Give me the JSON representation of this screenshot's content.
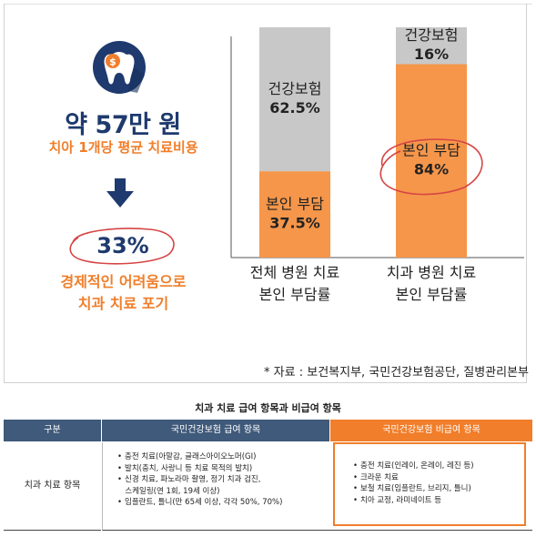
{
  "infographic": {
    "headline": "약 57만 원",
    "subline": "치아 1개당 평균 치료비용",
    "percent": "33%",
    "giveup_line1": "경제적인 어려움으로",
    "giveup_line2": "치과 치료 포기",
    "colors": {
      "navy": "#1e3a6e",
      "orange": "#f07e2a",
      "gray": "#c8c8c8",
      "circle": "#d64545"
    }
  },
  "chart_data": {
    "type": "bar",
    "stacked": true,
    "categories": [
      "전체 병원 치료\n본인 부담률",
      "치과 병원 치료\n본인 부담률"
    ],
    "series": [
      {
        "name": "본인 부담",
        "values": [
          37.5,
          84
        ],
        "color": "#f5964a"
      },
      {
        "name": "건강보험",
        "values": [
          62.5,
          16
        ],
        "color": "#c8c8c8"
      }
    ],
    "value_labels": [
      {
        "category": 0,
        "series": 1,
        "label": "건강보험",
        "value": "62.5%"
      },
      {
        "category": 0,
        "series": 0,
        "label": "본인 부담",
        "value": "37.5%"
      },
      {
        "category": 1,
        "series": 1,
        "label": "건강보험",
        "value": "16%"
      },
      {
        "category": 1,
        "series": 0,
        "label": "본인 부담",
        "value": "84%"
      }
    ],
    "category_lines": [
      [
        "전체 병원 치료",
        "본인 부담률"
      ],
      [
        "치과 병원 치료",
        "본인 부담률"
      ]
    ],
    "ylim": [
      0,
      100
    ],
    "grid": false,
    "legend": "none"
  },
  "source": "* 자료 : 보건복지부, 국민건강보험공단, 질병관리본부",
  "table": {
    "title": "치과 치료 급여 항목과 비급여 항목",
    "headers": [
      "구분",
      "국민건강보험 급여 항목",
      "국민건강보험 비급여 항목"
    ],
    "row_label": "치과 치료 항목",
    "covered": [
      "충전 치료(아말감, 글래스아이오노머(GI)",
      "발치(충치, 사랑니 등 치료 목적의 발치)",
      "신경 치료, 파노라마 촬영, 정기 치과 검진,",
      "스케일링(연 1회, 19세 이상)",
      "임플란트, 틀니(만 65세 이상, 각각 50%, 70%)"
    ],
    "covered_bullets": [
      true,
      true,
      true,
      false,
      true
    ],
    "not_covered": [
      "충전 치료(인레이, 온레이, 레진 등)",
      "크라운 치료",
      "보철 치료(임플란트, 브리지, 틀니)",
      "치아 교정, 라미네이트 등"
    ]
  }
}
